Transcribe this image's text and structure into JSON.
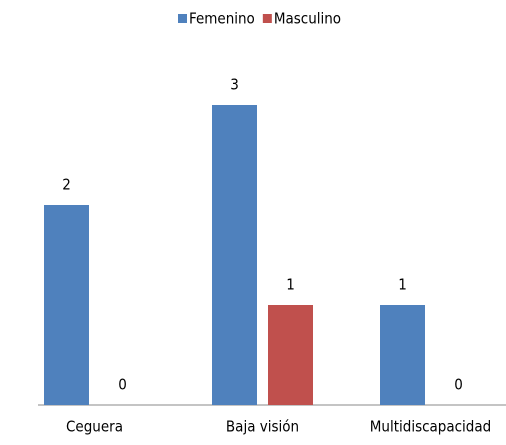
{
  "chart_data": {
    "type": "bar",
    "categories": [
      "Ceguera",
      "Baja visión",
      "Multidiscapacidad"
    ],
    "series": [
      {
        "name": "Femenino",
        "color": "#4f81bd",
        "values": [
          2,
          3,
          1
        ]
      },
      {
        "name": "Masculino",
        "color": "#c0504d",
        "values": [
          0,
          1,
          0
        ]
      }
    ],
    "legend": "top"
  }
}
